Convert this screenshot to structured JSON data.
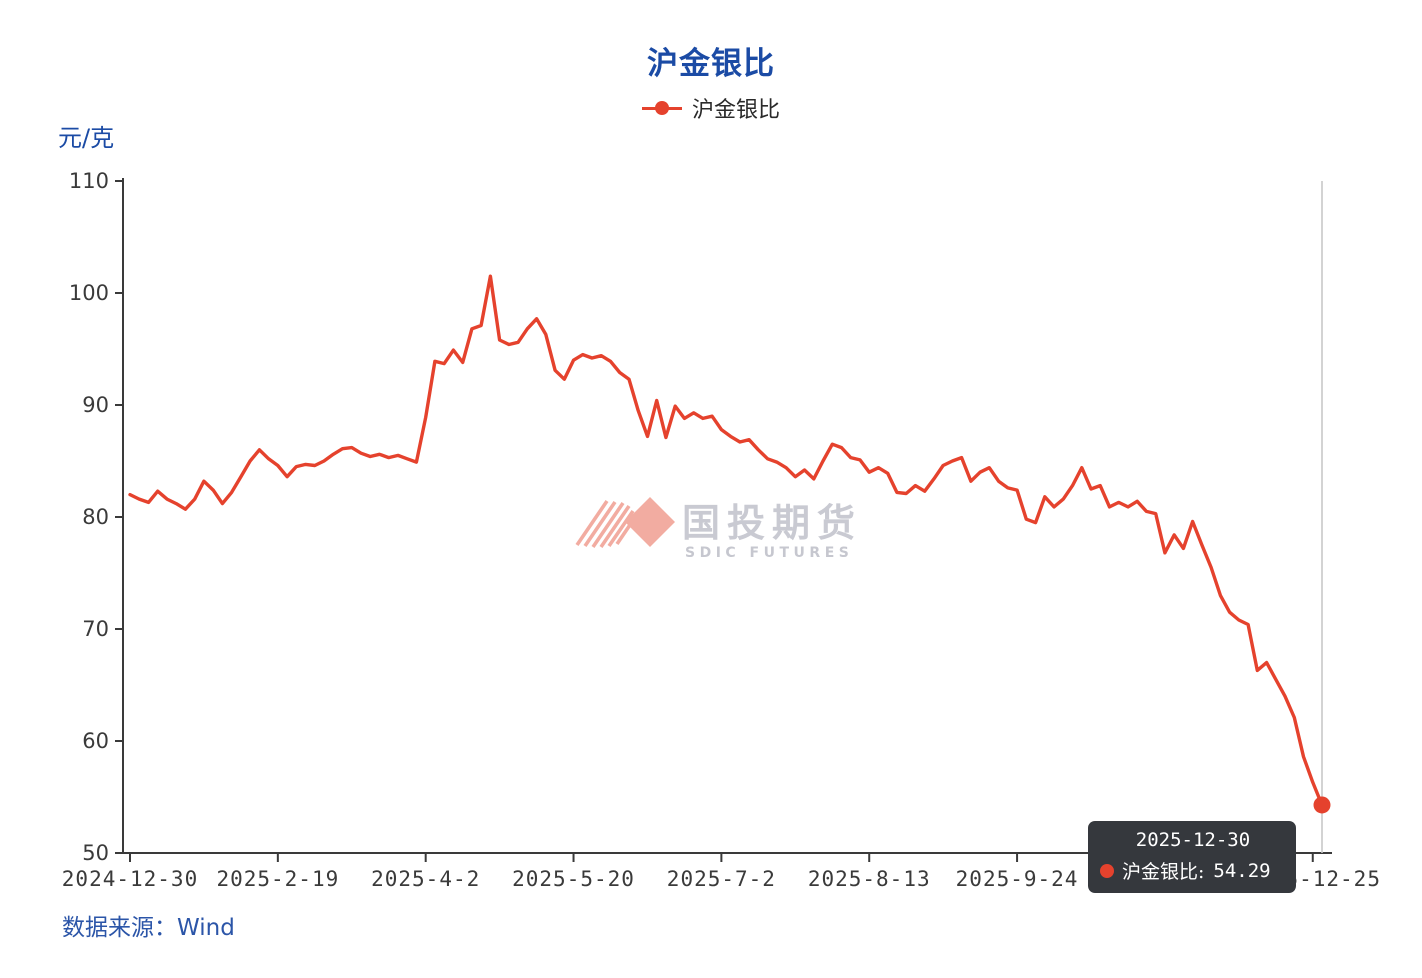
{
  "title": "沪金银比",
  "legend": {
    "label": "沪金银比"
  },
  "y_axis": {
    "unit": "元/克"
  },
  "tooltip": {
    "date": "2025-12-30",
    "series_label": "沪金银比:",
    "value": "54.29"
  },
  "watermark": {
    "cn": "国投期货",
    "en": "SDIC FUTURES"
  },
  "source": {
    "text": "数据来源：Wind"
  },
  "colors": {
    "line": "#e5422d",
    "title_blue": "#1b4ba5",
    "axis": "#3a3a3a",
    "pointer_line": "#c8c8c8",
    "tooltip_bg": "#35383d",
    "watermark_pink": "#f2a89c",
    "watermark_gray": "#c9cad2"
  },
  "chart_data": {
    "type": "line",
    "title": "沪金银比",
    "series_name": "沪金银比",
    "ylabel": "元/克",
    "ylim": [
      50,
      110
    ],
    "y_ticks": [
      50,
      60,
      70,
      80,
      90,
      100,
      110
    ],
    "grid": false,
    "legend_position": "top",
    "x_tick_labels": [
      "2024-12-30",
      "2025-2-19",
      "2025-4-2",
      "2025-5-20",
      "2025-7-2",
      "2025-8-13",
      "2025-9-24",
      "2025-12-25"
    ],
    "x_tick_positions": [
      0,
      16,
      32,
      48,
      64,
      80,
      96,
      128
    ],
    "occluded_tick_position": 112,
    "last_point": {
      "date": "2025-12-30",
      "value": 54.29
    },
    "values": [
      82.0,
      81.6,
      81.3,
      82.3,
      81.6,
      81.2,
      80.7,
      81.6,
      83.2,
      82.4,
      81.2,
      82.2,
      83.6,
      85.0,
      86.0,
      85.2,
      84.6,
      83.6,
      84.5,
      84.7,
      84.6,
      85.0,
      85.6,
      86.1,
      86.2,
      85.7,
      85.4,
      85.6,
      85.3,
      85.5,
      85.2,
      84.9,
      88.9,
      93.9,
      93.7,
      94.9,
      93.8,
      96.8,
      97.1,
      101.5,
      95.8,
      95.4,
      95.6,
      96.8,
      97.7,
      96.3,
      93.1,
      92.3,
      94.0,
      94.5,
      94.2,
      94.4,
      93.9,
      92.9,
      92.3,
      89.5,
      87.2,
      90.4,
      87.1,
      89.9,
      88.8,
      89.3,
      88.8,
      89.0,
      87.8,
      87.2,
      86.7,
      86.9,
      86.0,
      85.2,
      84.9,
      84.4,
      83.6,
      84.2,
      83.4,
      85.0,
      86.5,
      86.2,
      85.3,
      85.1,
      84.0,
      84.4,
      83.9,
      82.2,
      82.1,
      82.8,
      82.3,
      83.4,
      84.6,
      85.0,
      85.3,
      83.2,
      84.0,
      84.4,
      83.2,
      82.6,
      82.4,
      79.8,
      79.5,
      81.8,
      80.9,
      81.6,
      82.8,
      84.4,
      82.5,
      82.8,
      80.9,
      81.3,
      80.9,
      81.4,
      80.5,
      80.3,
      76.8,
      78.4,
      77.2,
      79.6,
      77.5,
      75.5,
      73.0,
      71.5,
      70.8,
      70.4,
      66.3,
      67.0,
      65.5,
      64.0,
      62.1,
      58.6,
      56.3,
      54.29
    ]
  }
}
